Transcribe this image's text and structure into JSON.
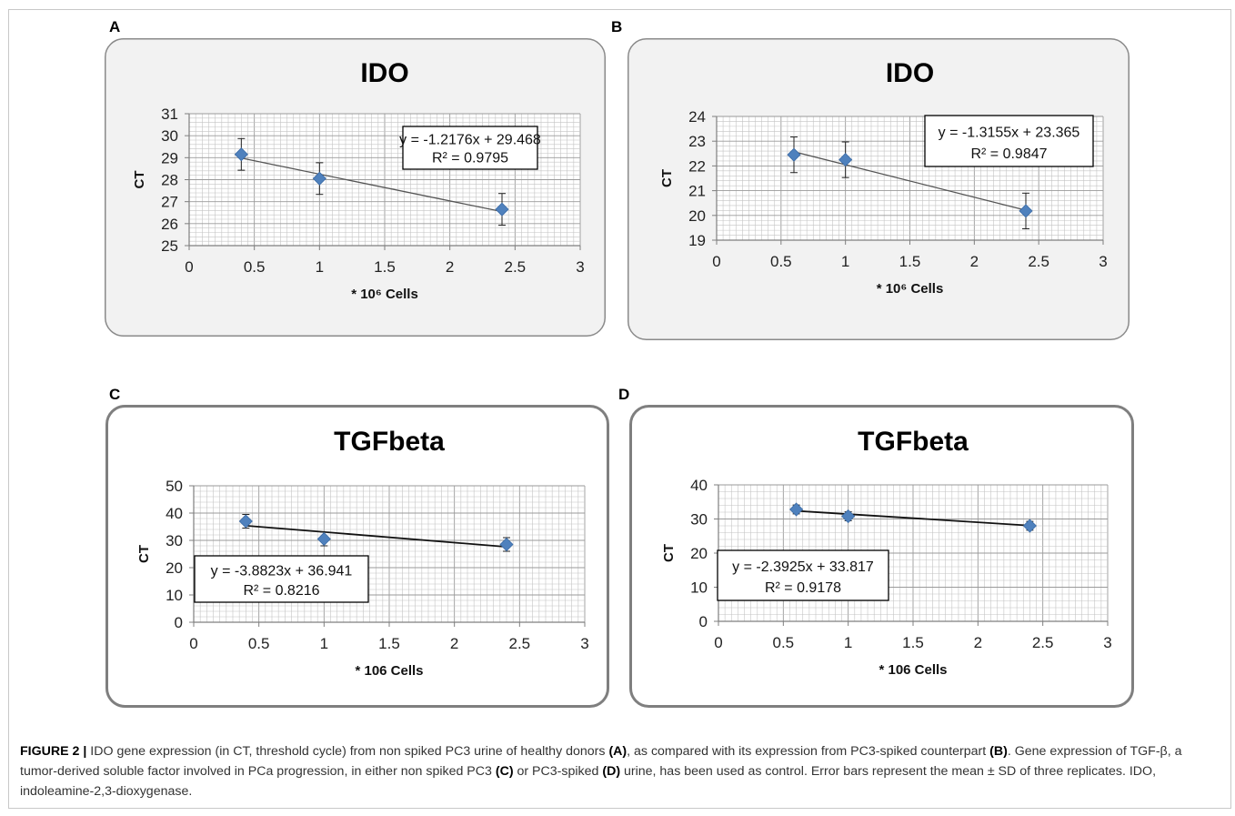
{
  "figure": {
    "panels": [
      {
        "letter": "A"
      },
      {
        "letter": "B"
      },
      {
        "letter": "C"
      },
      {
        "letter": "D"
      }
    ],
    "caption": {
      "label": "FIGURE 2 |",
      "t1": " IDO gene expression (in CT, threshold cycle) from non spiked PC3 urine of healthy donors ",
      "r1": "(A)",
      "t2": ", as compared with its expression from PC3-spiked counterpart ",
      "r2": "(B)",
      "t3": ". Gene expression of TGF-β, a tumor-derived soluble factor involved in PCa progression, in either non spiked PC3 ",
      "r3": "(C)",
      "t4": " or PC3-spiked ",
      "r4": "(D)",
      "t5": " urine, has been used as control. Error bars represent the mean ± SD of three replicates. IDO, indoleamine-2,3-dioxygenase."
    }
  },
  "chart_data": [
    {
      "type": "scatter",
      "title": "IDO",
      "xlabel": "* 10⁶ Cells",
      "ylabel": "CT",
      "xlim": [
        0,
        3
      ],
      "ylim": [
        25,
        31
      ],
      "xticks": [
        "0",
        "0.5",
        "1",
        "1.5",
        "2",
        "2.5",
        "3"
      ],
      "yticks": [
        "25",
        "26",
        "27",
        "28",
        "29",
        "30",
        "31"
      ],
      "x": [
        0.4,
        1.0,
        2.4
      ],
      "y": [
        29.15,
        28.05,
        26.65
      ],
      "error": [
        0.72,
        0.72,
        0.72
      ],
      "trendline": {
        "slope": -1.2176,
        "intercept": 29.468
      },
      "equation": "y = -1.2176x + 29.468",
      "r2": "R² = 0.9795",
      "legend": "top-right",
      "grid": true,
      "marker_color": "#4f81bd"
    },
    {
      "type": "scatter",
      "title": "IDO",
      "xlabel": "* 10⁶ Cells",
      "ylabel": "CT",
      "xlim": [
        0,
        3
      ],
      "ylim": [
        19,
        24
      ],
      "xticks": [
        "0",
        "0.5",
        "1",
        "1.5",
        "2",
        "2.5",
        "3"
      ],
      "yticks": [
        "19",
        "20",
        "21",
        "22",
        "23",
        "24"
      ],
      "x": [
        0.6,
        1.0,
        2.4
      ],
      "y": [
        22.45,
        22.25,
        20.18
      ],
      "error": [
        0.72,
        0.72,
        0.72
      ],
      "trendline": {
        "slope": -1.3155,
        "intercept": 23.365
      },
      "equation": "y = -1.3155x + 23.365",
      "r2": "R² = 0.9847",
      "legend": "top-right",
      "grid": true,
      "marker_color": "#4f81bd"
    },
    {
      "type": "scatter",
      "title": "TGFbeta",
      "xlabel": "* 106 Cells",
      "ylabel": "CT",
      "xlim": [
        0,
        3
      ],
      "ylim": [
        0,
        50
      ],
      "xticks": [
        "0",
        "0.5",
        "1",
        "1.5",
        "2",
        "2.5",
        "3"
      ],
      "yticks": [
        "0",
        "10",
        "20",
        "30",
        "40",
        "50"
      ],
      "x": [
        0.4,
        1.0,
        2.4
      ],
      "y": [
        37,
        30.5,
        28.5
      ],
      "error": [
        2.5,
        2.5,
        2.5
      ],
      "trendline": {
        "slope": -3.8823,
        "intercept": 36.941
      },
      "equation": "y = -3.8823x + 36.941",
      "r2": "R² = 0.8216",
      "legend": "bottom-left",
      "grid": true,
      "marker_color": "#4f81bd"
    },
    {
      "type": "scatter",
      "title": "TGFbeta",
      "xlabel": "* 106 Cells",
      "ylabel": "CT",
      "xlim": [
        0,
        3
      ],
      "ylim": [
        0,
        40
      ],
      "xticks": [
        "0",
        "0.5",
        "1",
        "1.5",
        "2",
        "2.5",
        "3"
      ],
      "yticks": [
        "0",
        "10",
        "20",
        "30",
        "40"
      ],
      "x": [
        0.6,
        1.0,
        2.4
      ],
      "y": [
        32.8,
        30.8,
        28.0
      ],
      "error": [
        1.3,
        1.3,
        1.3
      ],
      "trendline": {
        "slope": -2.3925,
        "intercept": 33.817
      },
      "equation": "y = -2.3925x + 33.817",
      "r2": "R² = 0.9178",
      "legend": "bottom-left",
      "grid": true,
      "marker_color": "#4f81bd"
    }
  ]
}
